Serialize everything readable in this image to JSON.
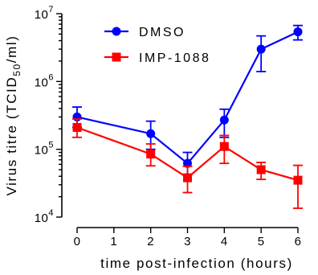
{
  "chart_data": {
    "type": "line",
    "xlabel": "time post-infection (hours)",
    "ylabel": {
      "prefix": "Virus titre (TCID",
      "subscript": "50",
      "suffix": "/ml)"
    },
    "x_ticks": [
      0,
      1,
      2,
      3,
      4,
      5,
      6
    ],
    "xlim": [
      0,
      6
    ],
    "y_scale": "log",
    "ylim": [
      10000,
      10000000
    ],
    "y_ticks": [
      {
        "value": 10000,
        "base": "10",
        "exp": "4"
      },
      {
        "value": 100000,
        "base": "10",
        "exp": "5"
      },
      {
        "value": 1000000,
        "base": "10",
        "exp": "6"
      },
      {
        "value": 10000000,
        "base": "10",
        "exp": "7"
      }
    ],
    "legend_position": "top-left",
    "grid": false,
    "series": [
      {
        "name": "DMSO",
        "color": "#0000ff",
        "marker": "circle",
        "points": [
          {
            "x": 0,
            "y": 300000,
            "lo": 210000,
            "hi": 420000
          },
          {
            "x": 2,
            "y": 170000,
            "lo": 100000,
            "hi": 260000
          },
          {
            "x": 3,
            "y": 62000,
            "lo": 42000,
            "hi": 90000
          },
          {
            "x": 4,
            "y": 270000,
            "lo": 150000,
            "hi": 390000
          },
          {
            "x": 5,
            "y": 3000000,
            "lo": 1400000,
            "hi": 4700000
          },
          {
            "x": 6,
            "y": 5400000,
            "lo": 4100000,
            "hi": 6700000
          }
        ]
      },
      {
        "name": "IMP-1088",
        "color": "#ff0000",
        "marker": "square",
        "points": [
          {
            "x": 0,
            "y": 210000,
            "lo": 150000,
            "hi": 280000
          },
          {
            "x": 2,
            "y": 85000,
            "lo": 57000,
            "hi": 120000
          },
          {
            "x": 3,
            "y": 38000,
            "lo": 23000,
            "hi": 56000
          },
          {
            "x": 4,
            "y": 110000,
            "lo": 62000,
            "hi": 160000
          },
          {
            "x": 5,
            "y": 50000,
            "lo": 36000,
            "hi": 64000
          },
          {
            "x": 6,
            "y": 35000,
            "lo": 13500,
            "hi": 58000
          }
        ]
      }
    ]
  }
}
